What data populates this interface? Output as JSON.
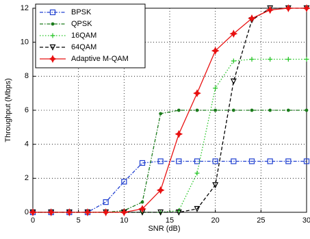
{
  "chart_data": {
    "type": "line",
    "x_label": "SNR (dB)",
    "y_label": "Throughput (Mbps)",
    "x": [
      0,
      2,
      4,
      6,
      8,
      10,
      12,
      14,
      16,
      18,
      20,
      22,
      24,
      26,
      28,
      30
    ],
    "xlim": [
      0,
      30
    ],
    "xticks": [
      0,
      5,
      10,
      15,
      20,
      25,
      30
    ],
    "ylim": [
      0,
      12
    ],
    "yticks": [
      0,
      2,
      4,
      6,
      8,
      10,
      12
    ],
    "grid": true,
    "legend": "upper left",
    "series": [
      {
        "name": "BPSK",
        "color": "#1f3fd0",
        "line_style": "dashdot",
        "marker": "square",
        "values": [
          0,
          0,
          0,
          0,
          0.6,
          1.8,
          2.9,
          3,
          3,
          3,
          3,
          3,
          3,
          3,
          3,
          3
        ]
      },
      {
        "name": "QPSK",
        "color": "#1a7a1a",
        "line_style": "dashdot",
        "marker": "dot",
        "values": [
          0,
          0,
          0,
          0,
          0,
          0.1,
          0.6,
          5.8,
          6,
          6,
          6,
          6,
          6,
          6,
          6,
          6
        ]
      },
      {
        "name": "16QAM",
        "color": "#22c422",
        "line_style": "dotted",
        "marker": "plus",
        "values": [
          0,
          0,
          0,
          0,
          0,
          0,
          0,
          0,
          0.1,
          2.3,
          7.3,
          8.9,
          9,
          9,
          9,
          9
        ]
      },
      {
        "name": "64QAM",
        "color": "#000000",
        "line_style": "dashed",
        "marker": "triangle",
        "values": [
          0,
          0,
          0,
          0,
          0,
          0,
          0,
          0,
          0,
          0.2,
          1.6,
          7.7,
          11.3,
          12,
          12,
          12
        ]
      },
      {
        "name": "Adaptive M-QAM",
        "color": "#e81010",
        "line_style": "solid",
        "marker": "star",
        "values": [
          0,
          0,
          0,
          0,
          0,
          0,
          0.2,
          1.3,
          4.6,
          7,
          9.5,
          10.5,
          11.4,
          11.9,
          12,
          12
        ]
      }
    ]
  }
}
